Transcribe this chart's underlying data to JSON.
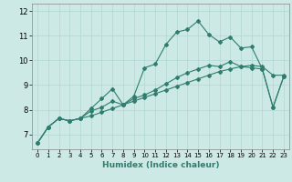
{
  "title": "",
  "xlabel": "Humidex (Indice chaleur)",
  "xlim": [
    -0.5,
    23.5
  ],
  "ylim": [
    6.4,
    12.3
  ],
  "xticks": [
    0,
    1,
    2,
    3,
    4,
    5,
    6,
    7,
    8,
    9,
    10,
    11,
    12,
    13,
    14,
    15,
    16,
    17,
    18,
    19,
    20,
    21,
    22,
    23
  ],
  "yticks": [
    7,
    8,
    9,
    10,
    11,
    12
  ],
  "background_color": "#cce9e5",
  "grid_color": "#b0d8d4",
  "line_color": "#2e7d6e",
  "line1_y": [
    6.65,
    7.3,
    7.65,
    7.55,
    7.65,
    7.75,
    7.9,
    8.05,
    8.2,
    8.35,
    8.5,
    8.65,
    8.8,
    8.95,
    9.1,
    9.25,
    9.4,
    9.55,
    9.65,
    9.75,
    9.8,
    9.75,
    9.4,
    9.4
  ],
  "line2_y": [
    6.65,
    7.3,
    7.65,
    7.55,
    7.65,
    8.05,
    8.45,
    8.85,
    8.2,
    8.55,
    9.7,
    9.85,
    10.65,
    11.15,
    11.25,
    11.6,
    11.05,
    10.75,
    10.95,
    10.5,
    10.55,
    9.65,
    8.1,
    9.35
  ],
  "line3_y": [
    6.65,
    7.3,
    7.65,
    7.55,
    7.65,
    7.95,
    8.1,
    8.35,
    8.2,
    8.45,
    8.6,
    8.8,
    9.05,
    9.3,
    9.5,
    9.65,
    9.8,
    9.75,
    9.95,
    9.75,
    9.7,
    9.65,
    8.1,
    9.35
  ]
}
